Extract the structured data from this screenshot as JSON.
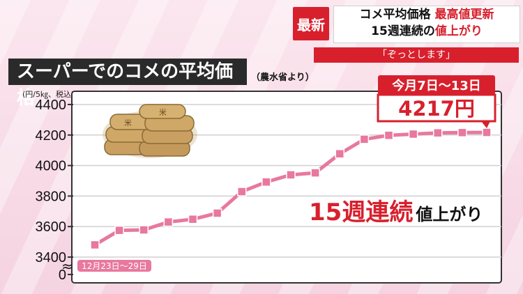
{
  "banner": {
    "badge": "最新",
    "line1_a": "コメ平均価格 ",
    "line1_b": "最高値更新",
    "line2_a": "15週連続の",
    "line2_b": "値上がり",
    "quote": "「ぞっとします」"
  },
  "header": {
    "title": "スーパーでのコメの平均価格",
    "source": "（農水省より）",
    "unit": "(円/5㎏、税込)"
  },
  "annotations": {
    "last_period": "今月7日～13日",
    "last_value": "4217円",
    "first_period": "12月23日～29日",
    "weeks_count": "15週連続",
    "weeks_text": "値上がり"
  },
  "colors": {
    "line": "#e8789e",
    "accent": "#d8202d"
  },
  "chart_data": {
    "type": "line",
    "title": "スーパーでのコメの平均価格",
    "ylabel": "(円/5㎏、税込)",
    "yticks": [
      0,
      3400,
      3600,
      3800,
      4000,
      4200,
      4400
    ],
    "ylim": [
      3400,
      4400
    ],
    "axis_break": true,
    "x": [
      "12月23日～29日",
      "",
      "",
      "",
      "",
      "",
      "",
      "",
      "",
      "",
      "",
      "",
      "",
      "",
      "",
      "",
      "今月7日～13日"
    ],
    "values": [
      3480,
      3575,
      3578,
      3630,
      3648,
      3688,
      3829,
      3892,
      3939,
      3952,
      4077,
      4172,
      4198,
      4206,
      4214,
      4216,
      4217
    ]
  }
}
